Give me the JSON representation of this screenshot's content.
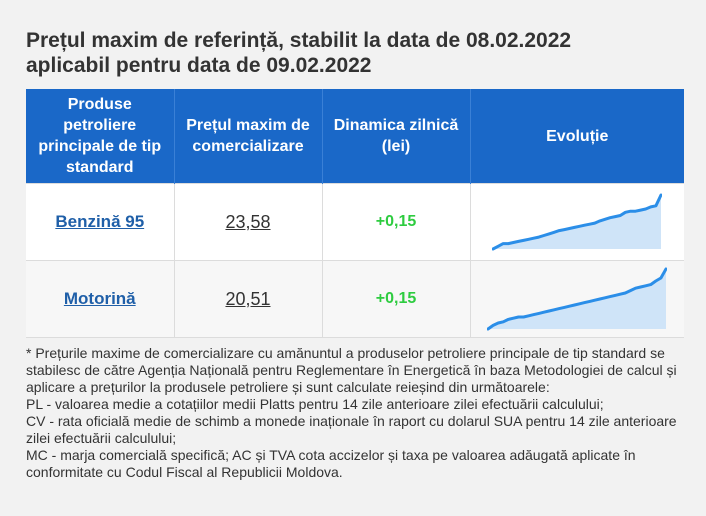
{
  "title_line1": "Prețul maxim de referință, stabilit la data de 08.02.2022",
  "title_line2": "aplicabil pentru data de 09.02.2022",
  "table": {
    "headers": [
      "Produse petroliere principale de tip standard",
      "Prețul maxim de comercializare",
      "Dinamica zilnică (lei)",
      "Evoluție"
    ],
    "rows": [
      {
        "product": "Benzină 95",
        "price": "23,58",
        "delta": "+0,15",
        "trend": [
          0.0,
          0.05,
          0.1,
          0.1,
          0.12,
          0.14,
          0.16,
          0.18,
          0.2,
          0.22,
          0.25,
          0.28,
          0.31,
          0.34,
          0.36,
          0.38,
          0.4,
          0.42,
          0.44,
          0.46,
          0.48,
          0.52,
          0.55,
          0.58,
          0.6,
          0.62,
          0.68,
          0.7,
          0.7,
          0.72,
          0.74,
          0.78,
          0.8,
          1.0
        ]
      },
      {
        "product": "Motorină",
        "price": "20,51",
        "delta": "+0,15",
        "trend": [
          0.0,
          0.06,
          0.1,
          0.12,
          0.16,
          0.18,
          0.2,
          0.2,
          0.22,
          0.24,
          0.26,
          0.28,
          0.3,
          0.32,
          0.34,
          0.36,
          0.38,
          0.4,
          0.42,
          0.44,
          0.46,
          0.48,
          0.5,
          0.52,
          0.54,
          0.56,
          0.58,
          0.6,
          0.64,
          0.68,
          0.7,
          0.72,
          0.74,
          0.8,
          0.85,
          1.0
        ]
      }
    ]
  },
  "notes": [
    "* Prețurile maxime de comercializare cu amănuntul a produselor petroliere principale de tip standard se stabilesc de către Agenția Națională pentru Reglementare în Energetică în baza Metodologiei de calcul și aplicare a prețurilor la produsele petroliere și sunt calculate reieșind din următoarele:",
    "PL - valoarea medie a cotațiilor medii Platts pentru 14 zile anterioare zilei efectuării calculului;",
    "CV - rata oficială medie de schimb a monede inaționale în raport cu dolarul SUA pentru 14 zile anterioare zilei efectuării calculului;",
    "MC - marja comercială specifică; AC și TVA cota accizelor și taxa pe valoarea adăugată aplicate în conformitate cu Codul Fiscal al Republicii Moldova."
  ],
  "colors": {
    "header_bg": "#1a68c8",
    "product_link": "#1f5fa8",
    "delta_up": "#2ecc40",
    "spark_line": "#2b8ee8",
    "spark_fill": "#cfe4f8"
  },
  "icons": [
    "sparkline-chart"
  ]
}
